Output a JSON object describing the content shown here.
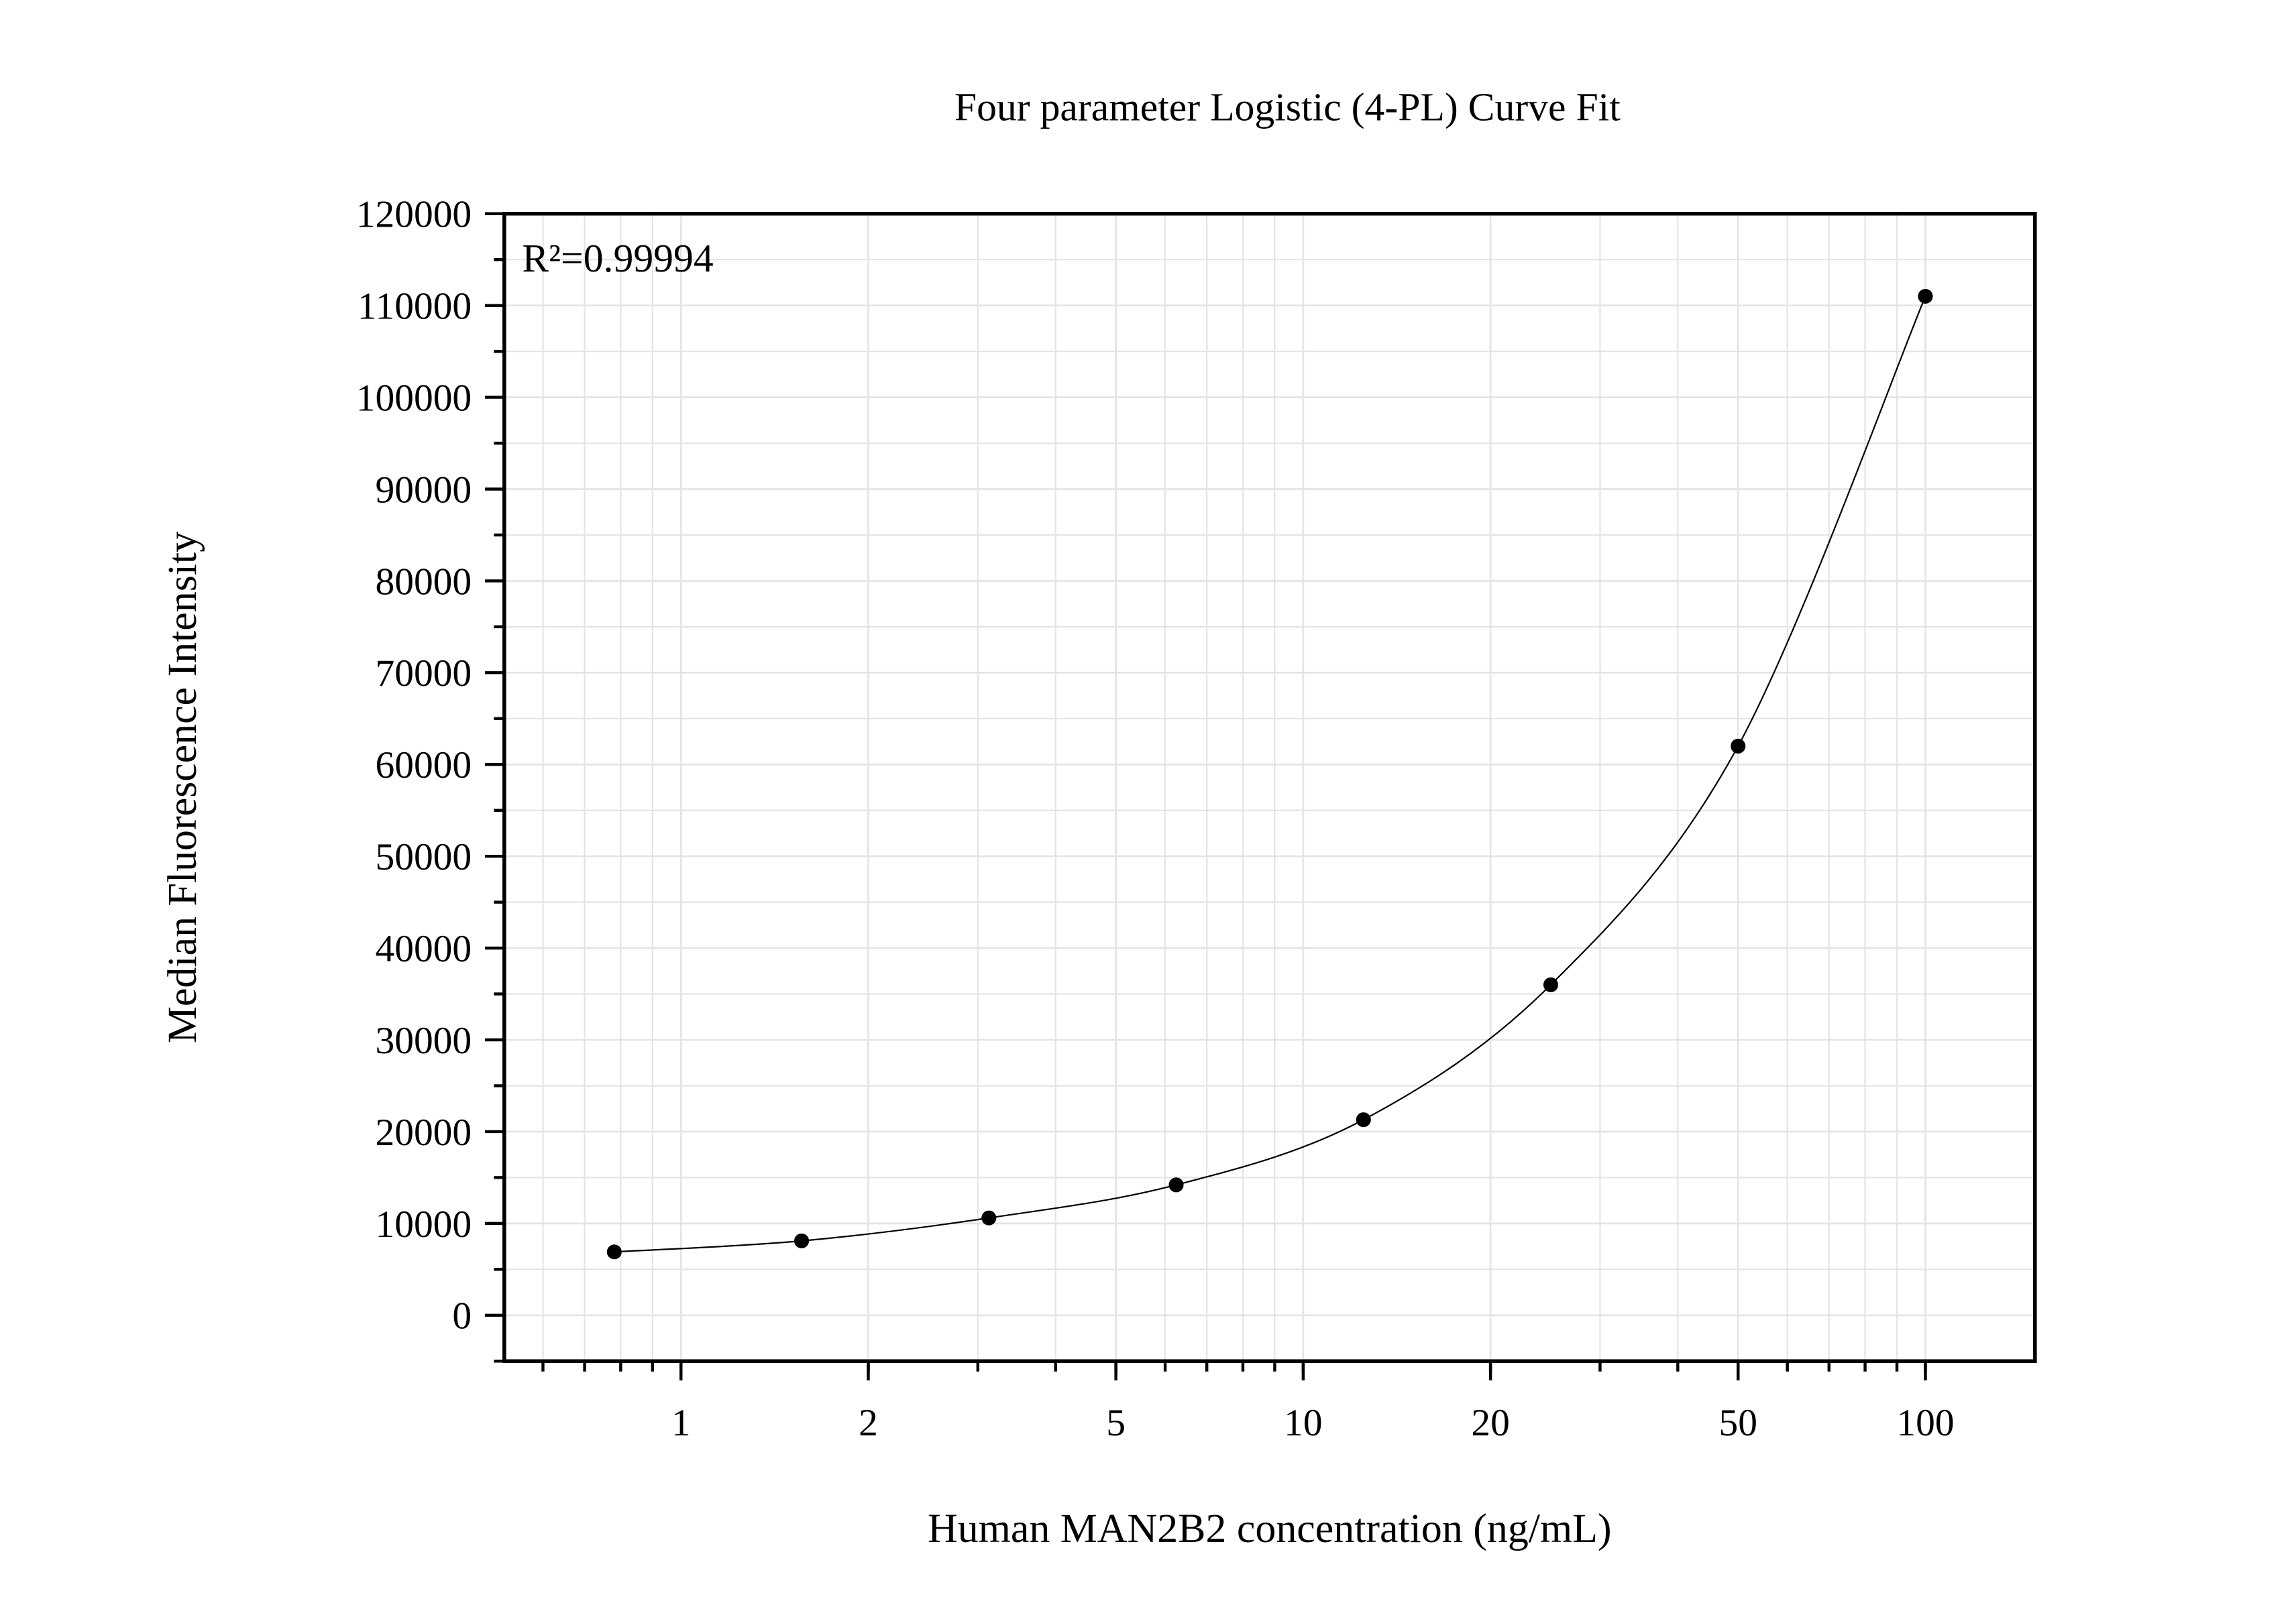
{
  "chart_data": {
    "type": "scatter",
    "title": "Four parameter Logistic (4-PL) Curve Fit",
    "x_label": "Human MAN2B2 concentration (ng/mL)",
    "y_label": "Median Fluorescence Intensity",
    "annotation": "R²=0.99994",
    "x": [
      0.78125,
      1.5625,
      3.125,
      6.25,
      12.5,
      25,
      50,
      100
    ],
    "series": [
      {
        "color": "#000000",
        "values": [
          6900,
          8100,
          10600,
          14200,
          21300,
          36000,
          62000,
          111000
        ]
      }
    ],
    "x_log": true,
    "xlim": [
      0.52,
      150
    ],
    "xticks": [
      1,
      2,
      5,
      10,
      20,
      50,
      100
    ],
    "ylim": [
      -5000,
      120000
    ],
    "yticks": [
      0,
      10000,
      20000,
      30000,
      40000,
      50000,
      60000,
      70000,
      80000,
      90000,
      100000,
      110000,
      120000
    ],
    "grid": true
  }
}
